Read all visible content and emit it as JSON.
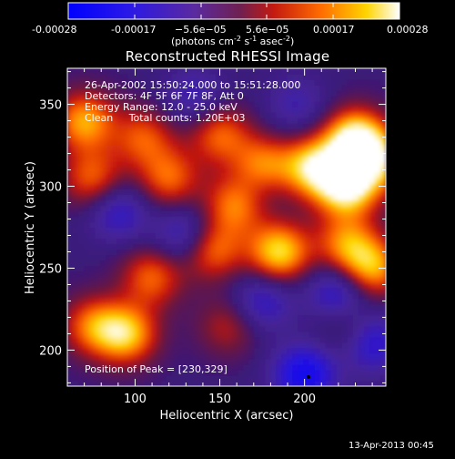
{
  "colorbar": {
    "tick_labels": [
      "-0.00028",
      "-0.00017",
      "−5.6e−05",
      "5.6e−05",
      "0.00017",
      "0.00028"
    ],
    "unit_prefix": "(photons cm",
    "unit_exp1": "-2",
    "unit_mid": " s",
    "unit_exp2": "-1",
    "unit_suffix": " asec",
    "unit_exp3": "-2",
    "unit_close": ")",
    "range": [
      -0.00028,
      0.00028
    ]
  },
  "chart_data": {
    "type": "heatmap",
    "title": "Reconstructed RHESSI Image",
    "xlabel": "Heliocentric X (arcsec)",
    "ylabel": "Heliocentric Y (arcsec)",
    "xlim": [
      60,
      248
    ],
    "ylim": [
      178,
      372
    ],
    "x_ticks": [
      100,
      150,
      200
    ],
    "y_ticks": [
      200,
      250,
      300,
      350
    ],
    "colormap": "red-temperature (blue=negative, violet=zero, yellow-white=positive)",
    "colors": {
      "neg_max": "#0000ff",
      "zero": "#3a1a7a",
      "mid": "#cc2a00",
      "pos_max": "#ffffff"
    },
    "annotations": [
      "26-Apr-2002 15:50:24.000 to 15:51:28.000",
      "Detectors: 4F 5F 6F 7F 8F, Att 0",
      "Energy Range: 12.0 - 25.0 keV",
      "Clean     Total counts: 1.20E+03"
    ],
    "peak_label": "Position of Peak = [230,329]",
    "peak": [
      230,
      329
    ],
    "sources": [
      {
        "x": 230,
        "y": 329,
        "v": 1.0
      },
      {
        "x": 225,
        "y": 300,
        "v": 0.95
      },
      {
        "x": 205,
        "y": 312,
        "v": 0.8
      },
      {
        "x": 175,
        "y": 312,
        "v": 0.7
      },
      {
        "x": 160,
        "y": 290,
        "v": 0.7
      },
      {
        "x": 120,
        "y": 305,
        "v": 0.55
      },
      {
        "x": 105,
        "y": 330,
        "v": 0.5
      },
      {
        "x": 150,
        "y": 332,
        "v": 0.55
      },
      {
        "x": 185,
        "y": 260,
        "v": 0.85
      },
      {
        "x": 145,
        "y": 262,
        "v": 0.65
      },
      {
        "x": 110,
        "y": 245,
        "v": 0.55
      },
      {
        "x": 95,
        "y": 210,
        "v": 0.75
      },
      {
        "x": 75,
        "y": 215,
        "v": 0.55
      },
      {
        "x": 240,
        "y": 250,
        "v": 0.7
      },
      {
        "x": 225,
        "y": 265,
        "v": 0.6
      },
      {
        "x": 245,
        "y": 315,
        "v": 0.6
      },
      {
        "x": 70,
        "y": 340,
        "v": 0.7
      },
      {
        "x": 75,
        "y": 305,
        "v": 0.55
      },
      {
        "x": 155,
        "y": 215,
        "v": 0.35
      },
      {
        "x": 225,
        "y": 215,
        "v": 0.3
      },
      {
        "x": 200,
        "y": 185,
        "v": -0.75
      },
      {
        "x": 220,
        "y": 235,
        "v": -0.55
      },
      {
        "x": 170,
        "y": 300,
        "v": -0.35
      },
      {
        "x": 130,
        "y": 270,
        "v": -0.5
      },
      {
        "x": 175,
        "y": 230,
        "v": -0.45
      },
      {
        "x": 90,
        "y": 285,
        "v": -0.45
      },
      {
        "x": 135,
        "y": 355,
        "v": -0.35
      },
      {
        "x": 240,
        "y": 205,
        "v": -0.55
      },
      {
        "x": 195,
        "y": 350,
        "v": -0.3
      }
    ]
  },
  "footer": {
    "timestamp": "13-Apr-2013 00:45"
  }
}
